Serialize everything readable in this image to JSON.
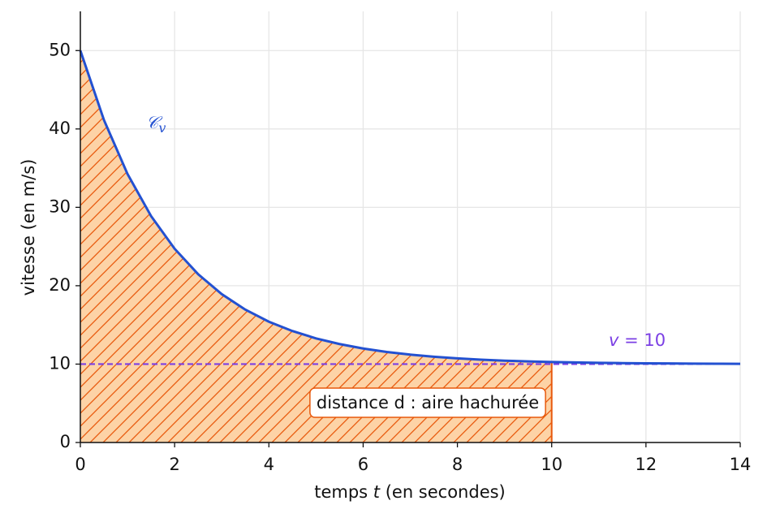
{
  "chart_data": {
    "type": "line",
    "x": [
      0,
      0.5,
      1,
      1.5,
      2,
      2.5,
      3,
      3.5,
      4,
      4.5,
      5,
      5.5,
      6,
      6.5,
      7,
      7.5,
      8,
      8.5,
      9,
      9.5,
      10,
      10.5,
      11,
      11.5,
      12,
      12.5,
      13,
      13.5,
      14
    ],
    "series": [
      {
        "name": "𝒞",
        "subscript": "v",
        "color": "#2351d1",
        "values": [
          50,
          41.15,
          34.26,
          28.89,
          24.72,
          21.46,
          18.93,
          16.95,
          15.41,
          14.22,
          13.28,
          12.56,
          11.99,
          11.55,
          11.21,
          10.94,
          10.73,
          10.57,
          10.44,
          10.35,
          10.27,
          10.21,
          10.16,
          10.13,
          10.1,
          10.08,
          10.06,
          10.05,
          10.04
        ]
      }
    ],
    "fill_to": 10,
    "fill_color": "#fdd3a6",
    "hatch_color": "#e8590c",
    "hline": {
      "value": 10,
      "color": "#7b3fe4",
      "label_var": "v",
      "label_rest": " = 10"
    },
    "annotation": "distance d : aire hachurée",
    "xlabel": {
      "before": "temps ",
      "var": "t",
      "after": " (en secondes)"
    },
    "ylabel": "vitesse (en m/s)",
    "xlim": [
      0,
      14
    ],
    "ylim": [
      0,
      55
    ],
    "xticks": [
      0,
      2,
      4,
      6,
      8,
      10,
      12,
      14
    ],
    "yticks": [
      0,
      10,
      20,
      30,
      40,
      50
    ],
    "grid": true
  }
}
